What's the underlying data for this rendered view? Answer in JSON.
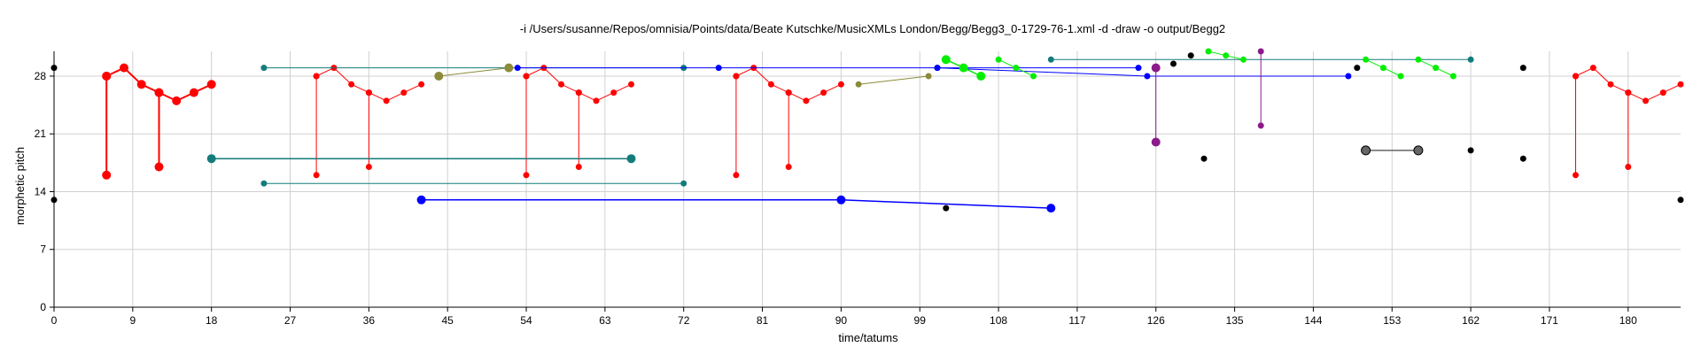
{
  "chart_data": {
    "type": "scatter",
    "title": "-i /Users/susanne/Repos/omnisia/Points/data/Beate Kutschke/MusicXMLs London/Begg/Begg3_0-1729-76-1.xml -d -draw -o output/Begg2",
    "xlabel": "time/tatums",
    "ylabel": "morphetic pitch",
    "xlim": [
      0,
      186
    ],
    "ylim": [
      0,
      31
    ],
    "xticks": [
      0,
      9,
      18,
      27,
      36,
      45,
      54,
      63,
      72,
      81,
      90,
      99,
      108,
      117,
      126,
      135,
      144,
      153,
      162,
      171,
      180
    ],
    "yticks": [
      0,
      7,
      14,
      21,
      28
    ],
    "grid": true,
    "colors": {
      "red": "#ff0000",
      "teal": "#147b7b",
      "blue": "#0000ff",
      "olive": "#8b8b3a",
      "lime": "#00ee00",
      "purple": "#8b1a8b",
      "black": "#000000",
      "gray_line": "#666666"
    },
    "background_points": [
      [
        0,
        29
      ],
      [
        0,
        13
      ],
      [
        128,
        29.5
      ],
      [
        130,
        30.5
      ],
      [
        131.5,
        18
      ],
      [
        149,
        29
      ],
      [
        162,
        19
      ],
      [
        168,
        18
      ],
      [
        168,
        29
      ],
      [
        186,
        13
      ],
      [
        102,
        12
      ]
    ],
    "series": [
      {
        "color": "red",
        "size": 5,
        "width": 2,
        "points": [
          [
            6,
            28
          ],
          [
            6,
            16
          ],
          [
            6,
            28
          ],
          [
            8,
            29
          ],
          [
            10,
            27
          ],
          [
            12,
            26
          ],
          [
            12,
            17
          ],
          [
            12,
            26
          ],
          [
            14,
            25
          ],
          [
            16,
            26
          ],
          [
            18,
            27
          ]
        ]
      },
      {
        "color": "red",
        "size": 3.5,
        "width": 1,
        "points": [
          [
            30,
            28
          ],
          [
            30,
            16
          ],
          [
            30,
            28
          ],
          [
            32,
            29
          ],
          [
            34,
            27
          ],
          [
            36,
            26
          ],
          [
            36,
            17
          ],
          [
            36,
            26
          ],
          [
            38,
            25
          ],
          [
            40,
            26
          ],
          [
            42,
            27
          ]
        ]
      },
      {
        "color": "red",
        "size": 3.5,
        "width": 1,
        "points": [
          [
            54,
            28
          ],
          [
            54,
            16
          ],
          [
            54,
            28
          ],
          [
            56,
            29
          ],
          [
            58,
            27
          ],
          [
            60,
            26
          ],
          [
            60,
            17
          ],
          [
            60,
            26
          ],
          [
            62,
            25
          ],
          [
            64,
            26
          ],
          [
            66,
            27
          ]
        ]
      },
      {
        "color": "red",
        "size": 3.5,
        "width": 1,
        "points": [
          [
            78,
            28
          ],
          [
            78,
            16
          ],
          [
            78,
            28
          ],
          [
            80,
            29
          ],
          [
            82,
            27
          ],
          [
            84,
            26
          ],
          [
            84,
            17
          ],
          [
            84,
            26
          ],
          [
            86,
            25
          ],
          [
            88,
            26
          ],
          [
            90,
            27
          ]
        ]
      },
      {
        "color": "red",
        "size": 3.5,
        "width": 1,
        "points": [
          [
            174,
            28
          ],
          [
            174,
            16
          ],
          [
            174,
            28
          ],
          [
            176,
            29
          ],
          [
            178,
            27
          ],
          [
            180,
            26
          ],
          [
            180,
            17
          ],
          [
            180,
            26
          ],
          [
            182,
            25
          ],
          [
            184,
            26
          ],
          [
            186,
            27
          ]
        ]
      },
      {
        "color": "teal",
        "size": 5,
        "width": 1.5,
        "points": [
          [
            18,
            18
          ],
          [
            66,
            18
          ]
        ]
      },
      {
        "color": "teal",
        "size": 3.5,
        "width": 1,
        "points": [
          [
            24,
            15
          ],
          [
            72,
            15
          ]
        ]
      },
      {
        "color": "teal",
        "size": 3.5,
        "width": 1,
        "points": [
          [
            24,
            29
          ],
          [
            72,
            29
          ]
        ]
      },
      {
        "color": "teal",
        "size": 3.5,
        "width": 1,
        "points": [
          [
            114,
            30
          ],
          [
            162,
            30
          ]
        ]
      },
      {
        "color": "blue",
        "size": 5,
        "width": 1.5,
        "points": [
          [
            42,
            13
          ],
          [
            90,
            13
          ],
          [
            114,
            12
          ]
        ]
      },
      {
        "color": "blue",
        "size": 3.5,
        "width": 1,
        "points": [
          [
            53,
            29
          ],
          [
            76,
            29
          ],
          [
            101,
            29
          ],
          [
            124,
            29
          ]
        ]
      },
      {
        "color": "blue",
        "size": 3.5,
        "width": 1,
        "points": [
          [
            101,
            29
          ],
          [
            125,
            28
          ],
          [
            148,
            28
          ]
        ]
      },
      {
        "color": "olive",
        "size": 5,
        "width": 1,
        "points": [
          [
            44,
            28
          ],
          [
            52,
            29
          ]
        ]
      },
      {
        "color": "olive",
        "size": 3.5,
        "width": 1,
        "points": [
          [
            92,
            27
          ],
          [
            100,
            28
          ]
        ]
      },
      {
        "color": "lime",
        "size": 5,
        "width": 1.5,
        "points": [
          [
            102,
            30
          ],
          [
            104,
            29
          ],
          [
            106,
            28
          ]
        ]
      },
      {
        "color": "lime",
        "size": 3.5,
        "width": 1,
        "points": [
          [
            108,
            30
          ],
          [
            110,
            29
          ],
          [
            112,
            28
          ]
        ]
      },
      {
        "color": "lime",
        "size": 3.5,
        "width": 1,
        "points": [
          [
            132,
            31
          ],
          [
            134,
            30.5
          ],
          [
            136,
            30
          ]
        ]
      },
      {
        "color": "lime",
        "size": 3.5,
        "width": 1,
        "points": [
          [
            150,
            30
          ],
          [
            152,
            29
          ],
          [
            154,
            28
          ]
        ]
      },
      {
        "color": "lime",
        "size": 3.5,
        "width": 1,
        "points": [
          [
            156,
            30
          ],
          [
            158,
            29
          ],
          [
            160,
            28
          ]
        ]
      },
      {
        "color": "purple",
        "size": 5,
        "width": 1,
        "points": [
          [
            126,
            29
          ],
          [
            126,
            20
          ]
        ]
      },
      {
        "color": "purple",
        "size": 3.5,
        "width": 1,
        "points": [
          [
            138,
            31
          ],
          [
            138,
            22
          ]
        ]
      },
      {
        "color": "gray_line",
        "size": 5,
        "width": 1.5,
        "points": [
          [
            150,
            19
          ],
          [
            156,
            19
          ]
        ]
      }
    ]
  }
}
